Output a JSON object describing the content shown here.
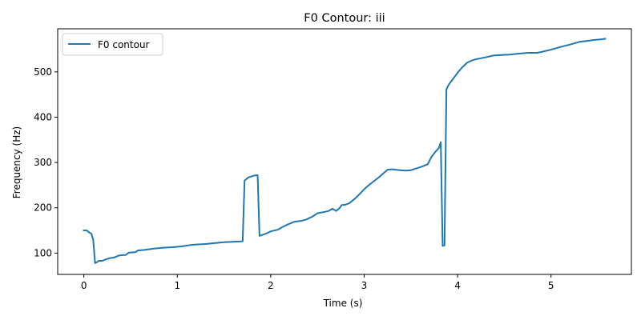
{
  "chart_data": {
    "type": "line",
    "title": "F0 Contour: iii",
    "xlabel": "Time (s)",
    "ylabel": "Frequency (Hz)",
    "xlim": [
      -0.28,
      5.86
    ],
    "ylim": [
      53,
      595
    ],
    "xticks": [
      0,
      1,
      2,
      3,
      4,
      5
    ],
    "yticks": [
      100,
      200,
      300,
      400,
      500
    ],
    "grid": false,
    "legend_position": "top-left",
    "series": [
      {
        "name": "F0 contour",
        "color": "#1f77b4",
        "x": [
          0.0,
          0.03,
          0.06,
          0.08,
          0.1,
          0.12,
          0.14,
          0.16,
          0.2,
          0.22,
          0.28,
          0.32,
          0.38,
          0.45,
          0.48,
          0.55,
          0.58,
          0.65,
          0.68,
          0.75,
          0.85,
          0.95,
          1.05,
          1.15,
          1.2,
          1.3,
          1.4,
          1.5,
          1.6,
          1.7,
          1.72,
          1.76,
          1.82,
          1.86,
          1.88,
          1.95,
          2.0,
          2.08,
          2.12,
          2.18,
          2.25,
          2.32,
          2.38,
          2.45,
          2.5,
          2.58,
          2.62,
          2.66,
          2.7,
          2.74,
          2.76,
          2.8,
          2.84,
          2.9,
          2.96,
          3.0,
          3.05,
          3.1,
          3.15,
          3.2,
          3.25,
          3.3,
          3.38,
          3.45,
          3.5,
          3.56,
          3.62,
          3.68,
          3.72,
          3.76,
          3.8,
          3.82,
          3.84,
          3.86,
          3.88,
          3.9,
          3.92,
          3.95,
          4.0,
          4.05,
          4.1,
          4.15,
          4.2,
          4.25,
          4.32,
          4.38,
          4.45,
          4.55,
          4.65,
          4.75,
          4.85,
          4.9,
          5.0,
          5.1,
          5.2,
          5.3,
          5.38,
          5.45,
          5.55,
          5.58
        ],
        "y": [
          150,
          150,
          145,
          143,
          130,
          78,
          80,
          83,
          83,
          85,
          89,
          90,
          95,
          96,
          101,
          102,
          106,
          107,
          108,
          110,
          112,
          113,
          115,
          118,
          119,
          120,
          122,
          124,
          125,
          126,
          260,
          267,
          271,
          272,
          138,
          143,
          148,
          152,
          157,
          163,
          169,
          171,
          174,
          181,
          188,
          191,
          193,
          198,
          193,
          200,
          206,
          207,
          210,
          220,
          232,
          241,
          250,
          258,
          266,
          275,
          284,
          285,
          283,
          282,
          283,
          287,
          291,
          296,
          312,
          323,
          332,
          345,
          116,
          117,
          461,
          470,
          476,
          484,
          498,
          510,
          520,
          525,
          528,
          530,
          533,
          536,
          537,
          538,
          540,
          542,
          542,
          544,
          549,
          555,
          560,
          566,
          568,
          570,
          572,
          573
        ]
      }
    ]
  }
}
